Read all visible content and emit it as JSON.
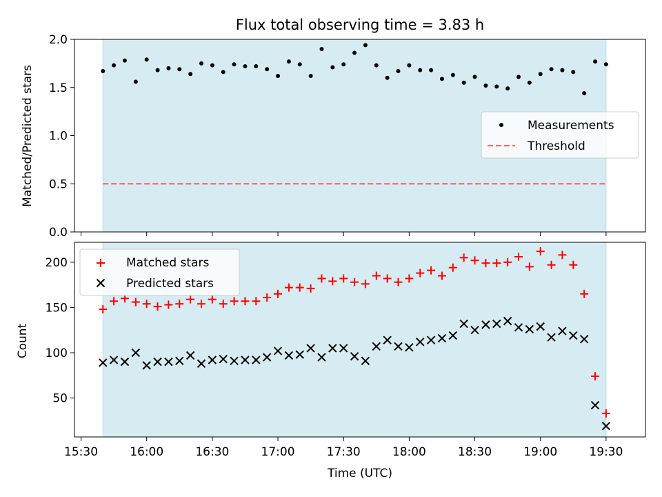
{
  "chart_data": [
    {
      "type": "scatter",
      "title": "Flux total observing time = 3.83 h",
      "xlabel": "",
      "ylabel": "Matched/Predicted stars",
      "xlim": [
        "15:27",
        "19:48"
      ],
      "ylim": [
        0,
        2
      ],
      "yticks": [
        0.0,
        0.5,
        1.0,
        1.5,
        2.0
      ],
      "ytick_labels": [
        "0.0",
        "0.5",
        "1.0",
        "1.5",
        "2.0"
      ],
      "shaded_span": [
        "15:40",
        "19:30"
      ],
      "shade_color": "#add8e6",
      "legend_location": "center-right",
      "series": [
        {
          "name": "Measurements",
          "marker": "dot",
          "color": "#000000",
          "x": [
            "15:40",
            "15:45",
            "15:50",
            "15:55",
            "16:00",
            "16:05",
            "16:10",
            "16:15",
            "16:20",
            "16:25",
            "16:30",
            "16:35",
            "16:40",
            "16:45",
            "16:50",
            "16:55",
            "17:00",
            "17:05",
            "17:10",
            "17:15",
            "17:20",
            "17:25",
            "17:30",
            "17:35",
            "17:40",
            "17:45",
            "17:50",
            "17:55",
            "18:00",
            "18:05",
            "18:10",
            "18:15",
            "18:20",
            "18:25",
            "18:30",
            "18:35",
            "18:40",
            "18:45",
            "18:50",
            "18:55",
            "19:00",
            "19:05",
            "19:10",
            "19:15",
            "19:20",
            "19:25",
            "19:30"
          ],
          "y": [
            1.67,
            1.73,
            1.78,
            1.56,
            1.79,
            1.68,
            1.7,
            1.69,
            1.64,
            1.75,
            1.73,
            1.66,
            1.74,
            1.72,
            1.72,
            1.69,
            1.62,
            1.77,
            1.74,
            1.62,
            1.9,
            1.71,
            1.74,
            1.86,
            1.94,
            1.73,
            1.6,
            1.67,
            1.73,
            1.68,
            1.68,
            1.59,
            1.63,
            1.55,
            1.61,
            1.52,
            1.51,
            1.49,
            1.61,
            1.55,
            1.64,
            1.69,
            1.68,
            1.66,
            1.44,
            1.77,
            1.74
          ]
        },
        {
          "name": "Threshold",
          "marker": "dashed-line",
          "color": "#ff6b6b",
          "x": [
            "15:40",
            "19:30"
          ],
          "y": [
            0.5,
            0.5
          ]
        }
      ]
    },
    {
      "type": "scatter",
      "title": "",
      "xlabel": "Time (UTC)",
      "ylabel": "Count",
      "xlim": [
        "15:27",
        "19:48"
      ],
      "ylim": [
        7,
        222
      ],
      "xticks": [
        "15:30",
        "16:00",
        "16:30",
        "17:00",
        "17:30",
        "18:00",
        "18:30",
        "19:00",
        "19:30"
      ],
      "yticks": [
        50,
        100,
        150,
        200
      ],
      "shaded_span": [
        "15:40",
        "19:30"
      ],
      "shade_color": "#add8e6",
      "legend_location": "upper-left",
      "series": [
        {
          "name": "Matched stars",
          "marker": "plus",
          "color": "#ff0000",
          "x": [
            "15:40",
            "15:45",
            "15:50",
            "15:55",
            "16:00",
            "16:05",
            "16:10",
            "16:15",
            "16:20",
            "16:25",
            "16:30",
            "16:35",
            "16:40",
            "16:45",
            "16:50",
            "16:55",
            "17:00",
            "17:05",
            "17:10",
            "17:15",
            "17:20",
            "17:25",
            "17:30",
            "17:35",
            "17:40",
            "17:45",
            "17:50",
            "17:55",
            "18:00",
            "18:05",
            "18:10",
            "18:15",
            "18:20",
            "18:25",
            "18:30",
            "18:35",
            "18:40",
            "18:45",
            "18:50",
            "18:55",
            "19:00",
            "19:05",
            "19:10",
            "19:15",
            "19:20",
            "19:25",
            "19:30"
          ],
          "y": [
            148,
            157,
            160,
            156,
            154,
            151,
            153,
            154,
            159,
            154,
            159,
            154,
            157,
            157,
            157,
            161,
            165,
            172,
            172,
            171,
            182,
            179,
            182,
            178,
            176,
            185,
            182,
            178,
            182,
            188,
            191,
            185,
            194,
            205,
            202,
            199,
            199,
            200,
            206,
            195,
            212,
            197,
            208,
            197,
            165,
            74,
            33
          ]
        },
        {
          "name": "Predicted stars",
          "marker": "x",
          "color": "#000000",
          "x": [
            "15:40",
            "15:45",
            "15:50",
            "15:55",
            "16:00",
            "16:05",
            "16:10",
            "16:15",
            "16:20",
            "16:25",
            "16:30",
            "16:35",
            "16:40",
            "16:45",
            "16:50",
            "16:55",
            "17:00",
            "17:05",
            "17:10",
            "17:15",
            "17:20",
            "17:25",
            "17:30",
            "17:35",
            "17:40",
            "17:45",
            "17:50",
            "17:55",
            "18:00",
            "18:05",
            "18:10",
            "18:15",
            "18:20",
            "18:25",
            "18:30",
            "18:35",
            "18:40",
            "18:45",
            "18:50",
            "18:55",
            "19:00",
            "19:05",
            "19:10",
            "19:15",
            "19:20",
            "19:25",
            "19:30"
          ],
          "y": [
            89,
            92,
            90,
            100,
            86,
            90,
            90,
            91,
            97,
            88,
            92,
            93,
            91,
            92,
            92,
            95,
            102,
            97,
            98,
            105,
            95,
            105,
            105,
            96,
            91,
            107,
            114,
            107,
            106,
            112,
            114,
            116,
            119,
            132,
            125,
            131,
            132,
            135,
            128,
            126,
            129,
            117,
            124,
            119,
            115,
            42,
            19
          ]
        }
      ]
    }
  ]
}
